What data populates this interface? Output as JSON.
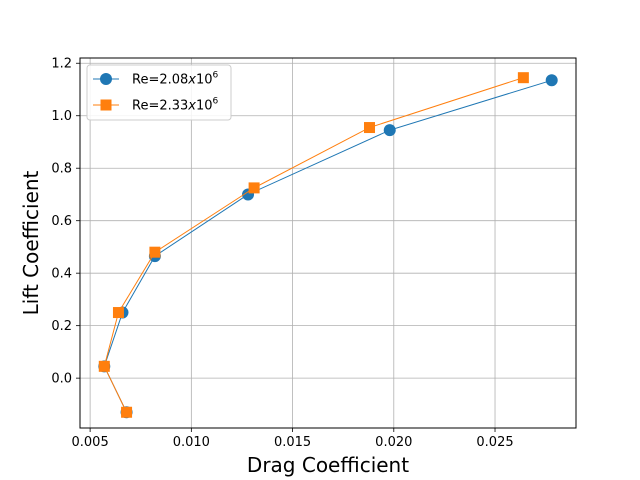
{
  "chart_data": {
    "type": "line",
    "title": "",
    "xlabel": "Drag Coefficient",
    "ylabel": "Lift Coefficient",
    "xlim": [
      0.0045,
      0.029
    ],
    "ylim": [
      -0.19,
      1.22
    ],
    "xticks": [
      0.005,
      0.01,
      0.015,
      0.02,
      0.025
    ],
    "xtick_labels": [
      "0.005",
      "0.010",
      "0.015",
      "0.020",
      "0.025"
    ],
    "yticks": [
      0.0,
      0.2,
      0.4,
      0.6,
      0.8,
      1.0,
      1.2
    ],
    "ytick_labels": [
      "0.0",
      "0.2",
      "0.4",
      "0.6",
      "0.8",
      "1.0",
      "1.2"
    ],
    "grid": true,
    "legend_position": "top-left",
    "series": [
      {
        "name": "Re=2.08x10^6",
        "legend_base": "Re=2.08",
        "legend_x": "x",
        "legend_ten": "10",
        "legend_exp": "6",
        "color": "#1f77b4",
        "marker": "circle",
        "x": [
          0.0068,
          0.0057,
          0.0066,
          0.0082,
          0.0128,
          0.0198,
          0.0278
        ],
        "y": [
          -0.13,
          0.045,
          0.25,
          0.465,
          0.7,
          0.945,
          1.135
        ]
      },
      {
        "name": "Re=2.33x10^6",
        "legend_base": "Re=2.33",
        "legend_x": "x",
        "legend_ten": "10",
        "legend_exp": "6",
        "color": "#ff7f0e",
        "marker": "square",
        "x": [
          0.0068,
          0.0057,
          0.0064,
          0.0082,
          0.0131,
          0.0188,
          0.0264
        ],
        "y": [
          -0.13,
          0.045,
          0.25,
          0.48,
          0.725,
          0.955,
          1.145
        ]
      }
    ]
  }
}
